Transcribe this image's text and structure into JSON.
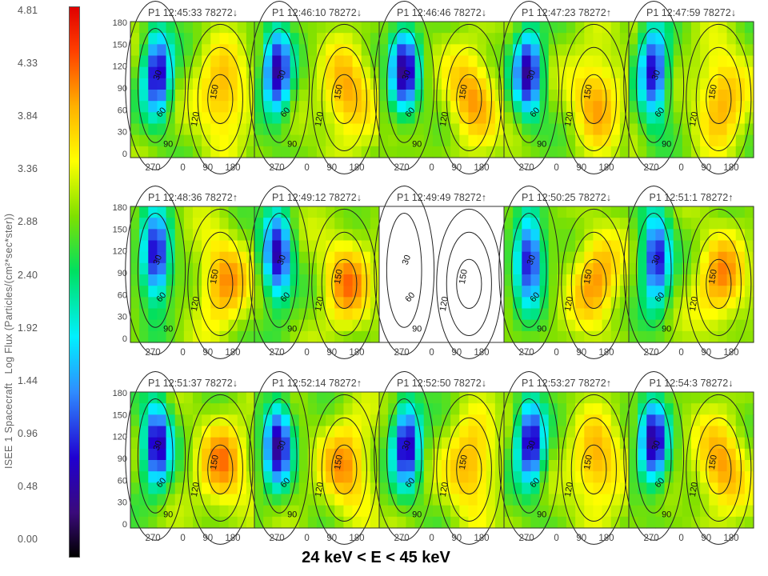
{
  "colorbar": {
    "label_spacecraft": "ISEE 1 Spacecraft",
    "label_flux": "Log Flux (Particles/(cm²*sec*ster))",
    "ticks": [
      "4.81",
      "4.33",
      "3.84",
      "3.36",
      "2.88",
      "2.40",
      "1.92",
      "1.44",
      "0.96",
      "0.48",
      "0.00"
    ],
    "min": 0.0,
    "max": 4.81
  },
  "energy_label": "24 keV < E < 45 keV",
  "chart_data": {
    "type": "heatmap",
    "description_axes": {
      "x_ticks": [
        "270",
        "0",
        "90",
        "180"
      ],
      "y_ticks": [
        "0",
        "30",
        "60",
        "90",
        "120",
        "150",
        "180"
      ]
    },
    "contour_labels": [
      "30",
      "60",
      "90",
      "120",
      "150"
    ],
    "panels": [
      {
        "title": "P1 12:45:33 78272↓",
        "fill": true
      },
      {
        "title": "P1 12:46:10 78272↓",
        "fill": true
      },
      {
        "title": "P1 12:46:46 78272↓",
        "fill": true
      },
      {
        "title": "P1 12:47:23 78272↑",
        "fill": true
      },
      {
        "title": "P1 12:47:59 78272↓",
        "fill": true
      },
      {
        "title": "P1 12:48:36 78272↑",
        "fill": true
      },
      {
        "title": "P1 12:49:12 78272↓",
        "fill": true
      },
      {
        "title": "P1 12:49:49 78272↑",
        "fill": false
      },
      {
        "title": "P1 12:50:25 78272↓",
        "fill": true
      },
      {
        "title": "P1 12:51:1 78272↑",
        "fill": true
      },
      {
        "title": "P1 12:51:37 78272↓",
        "fill": true
      },
      {
        "title": "P1 12:52:14 78272↑",
        "fill": true
      },
      {
        "title": "P1 12:52:50 78272↓",
        "fill": true
      },
      {
        "title": "P1 12:53:27 78272↑",
        "fill": true
      },
      {
        "title": "P1 12:54:3 78272↓",
        "fill": true
      }
    ]
  }
}
